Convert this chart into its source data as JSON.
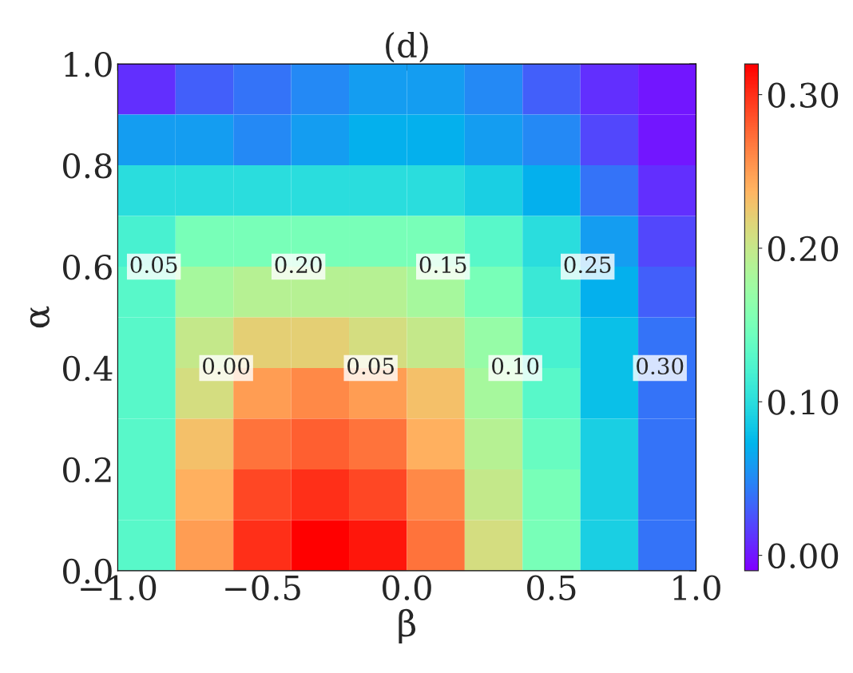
{
  "chart_data": {
    "type": "heatmap",
    "title": "(d)",
    "xlabel": "β",
    "ylabel": "α",
    "x": [
      -0.9,
      -0.7,
      -0.5,
      -0.3,
      -0.1,
      0.1,
      0.3,
      0.5,
      0.7,
      0.9
    ],
    "y": [
      0.95,
      0.85,
      0.75,
      0.65,
      0.55,
      0.45,
      0.35,
      0.25,
      0.15,
      0.05
    ],
    "cells": [
      [
        0.01,
        0.03,
        0.04,
        0.05,
        0.06,
        0.06,
        0.05,
        0.03,
        0.01,
        0.0
      ],
      [
        0.06,
        0.06,
        0.05,
        0.06,
        0.07,
        0.07,
        0.06,
        0.05,
        0.02,
        0.0
      ],
      [
        0.1,
        0.1,
        0.1,
        0.1,
        0.1,
        0.1,
        0.09,
        0.07,
        0.04,
        0.01
      ],
      [
        0.12,
        0.15,
        0.15,
        0.15,
        0.15,
        0.15,
        0.13,
        0.1,
        0.06,
        0.02
      ],
      [
        0.13,
        0.18,
        0.19,
        0.19,
        0.19,
        0.18,
        0.15,
        0.11,
        0.07,
        0.03
      ],
      [
        0.13,
        0.2,
        0.22,
        0.22,
        0.21,
        0.2,
        0.17,
        0.12,
        0.08,
        0.04
      ],
      [
        0.13,
        0.21,
        0.25,
        0.26,
        0.25,
        0.23,
        0.18,
        0.13,
        0.08,
        0.04
      ],
      [
        0.13,
        0.23,
        0.27,
        0.28,
        0.27,
        0.24,
        0.19,
        0.14,
        0.09,
        0.04
      ],
      [
        0.13,
        0.24,
        0.29,
        0.3,
        0.29,
        0.26,
        0.2,
        0.15,
        0.09,
        0.04
      ],
      [
        0.13,
        0.25,
        0.3,
        0.32,
        0.31,
        0.27,
        0.21,
        0.15,
        0.09,
        0.04
      ]
    ],
    "xlim": [
      -1.0,
      1.0
    ],
    "ylim": [
      0.0,
      1.0
    ],
    "xticks": [
      {
        "value": -1.0,
        "label": "−1.0"
      },
      {
        "value": -0.5,
        "label": "−0.5"
      },
      {
        "value": 0,
        "label": "0.0"
      },
      {
        "value": 0.5,
        "label": "0.5"
      },
      {
        "value": 1.0,
        "label": "1.0"
      }
    ],
    "yticks": [
      {
        "value": 0,
        "label": "0.0"
      },
      0.2,
      0.4,
      0.6,
      0.8,
      {
        "value": 1.0,
        "label": "1.0"
      }
    ],
    "clim": [
      -0.01,
      0.32
    ],
    "cticks": [
      {
        "value": 0,
        "label": "0.00"
      },
      {
        "value": 0.1,
        "label": "0.10"
      },
      {
        "value": 0.2,
        "label": "0.20"
      },
      {
        "value": 0.3,
        "label": "0.30"
      }
    ],
    "grid": false,
    "annotations": [
      "0.05",
      "0.00",
      "0.20",
      "0.05",
      "0.15",
      "0.10",
      "0.25",
      "0.30"
    ]
  }
}
